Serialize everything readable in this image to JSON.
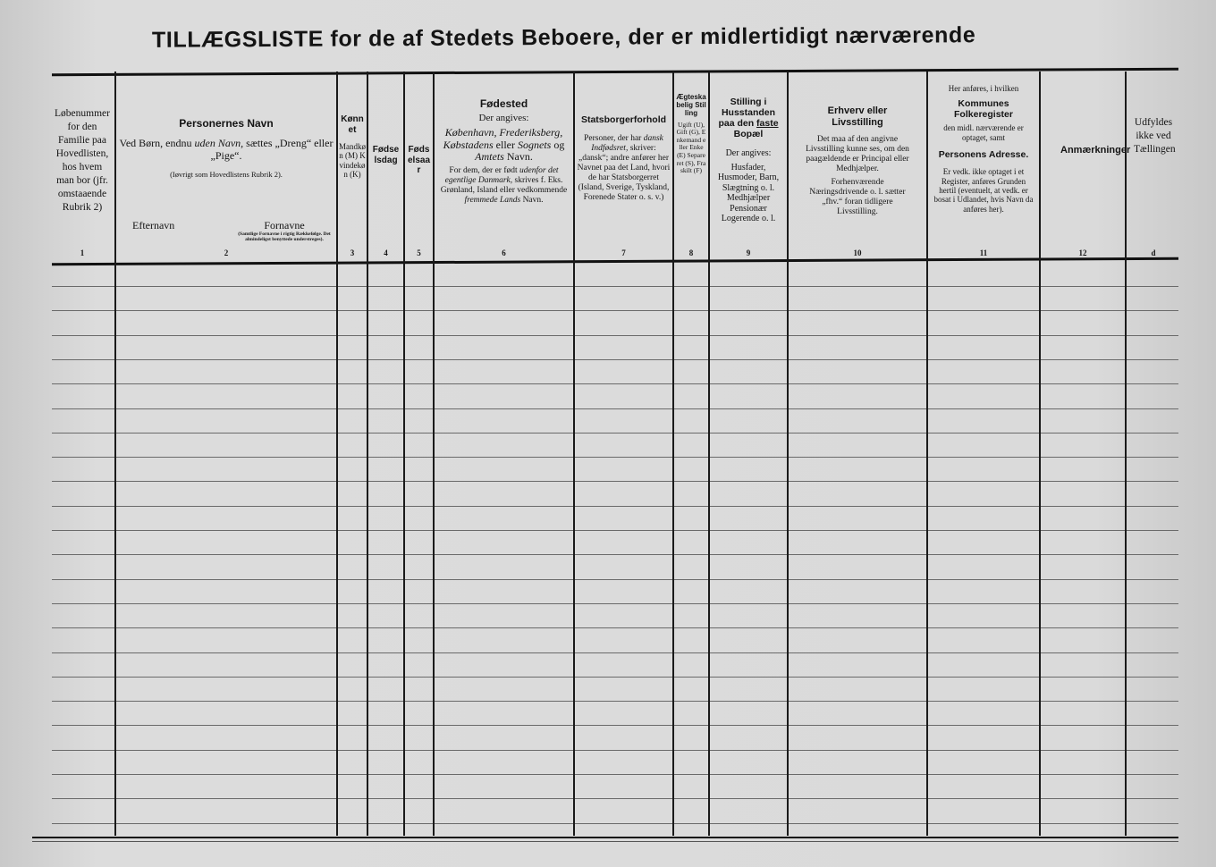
{
  "title": "TILLÆGSLISTE for de af Stedets Beboere, der er midlertidigt nærværende",
  "columns": {
    "c1": {
      "text": "Løbenummer for den Familie paa Hovedlisten, hos hvem man bor (jfr. omstaaende Rubrik 2)",
      "number": "1"
    },
    "c2": {
      "heading": "Personernes Navn",
      "note_pre": "Ved Børn, endnu ",
      "note_em": "uden Navn,",
      "note_post": " sættes „Dreng“ eller „Pige“.",
      "sub": "(Iøvrigt som Hovedlistens Rubrik 2).",
      "surname": "Efternavn",
      "given": "Fornavne",
      "given_note": "(Samtlige Fornavne i rigtig Rækkefølge. Det almindeligst benyttede understreges).",
      "number": "2"
    },
    "c3": {
      "heading": "Kønnet",
      "body": "Mandkøn (M) Kvindekøn (K)",
      "number": "3"
    },
    "c4": {
      "heading": "Fødselsdag",
      "number": "4"
    },
    "c5": {
      "heading": "Fødselsaar",
      "number": "5"
    },
    "c6": {
      "heading": "Fødested",
      "sub": "Der angives:",
      "em1": "København, Frederiksberg, Købstadens",
      "t1": " eller ",
      "em2": "Sognets",
      "t2": " og ",
      "em3": "Amtets",
      "t3": " Navn.",
      "p2_pre": "For dem, der er født ",
      "p2_em": "udenfor det egentlige Danmark,",
      "p2_mid": " skrives f. Eks. Grønland, Island eller vedkommende ",
      "p2_em2": "fremmede Lands",
      "p2_post": " Navn.",
      "number": "6"
    },
    "c7": {
      "heading": "Statsborgerforhold",
      "pre": "Personer, der har ",
      "em": "dansk Indfødsret,",
      "post": " skriver: „dansk“; andre anfører her Navnet paa det Land, hvori de har Statsborgerret (Island, Sverige, Tyskland, Forenede Stater o. s. v.)",
      "number": "7"
    },
    "c8": {
      "heading": "Ægteskabelig Stilling",
      "body": "Ugift (U), Gift (G), Enkemand eller Enke (E) Separeret (S), Fraskilt (F)",
      "number": "8"
    },
    "c9": {
      "heading_pre": "Stilling i Husstanden paa den ",
      "heading_u": "faste",
      "heading_post": " Bopæl",
      "sub": "Der angives:",
      "body": "Husfader, Husmoder, Barn, Slægtning o. l. Medhjælper Pensionær Logerende o. l.",
      "number": "9"
    },
    "c10": {
      "heading": "Erhverv eller Livsstilling",
      "p1": "Det maa af den angivne Livsstilling kunne ses, om den paagældende er Principal eller Medhjælper.",
      "p2": "Forhenværende Næringsdrivende o. l. sætter „fhv.“ foran tidligere Livsstilling.",
      "number": "10"
    },
    "c11": {
      "intro": "Her anføres, i hvilken",
      "heading": "Kommunes Folkeregister",
      "mid": "den midl. nærværende er optaget, samt",
      "heading2": "Personens Adresse.",
      "body": "Er vedk. ikke optaget i et Register, anføres Grunden hertil (eventuelt, at vedk. er bosat i Udlandet, hvis Navn da anføres her).",
      "number": "11"
    },
    "c12": {
      "heading": "Anmærkninger",
      "number": "12"
    },
    "c13": {
      "text": "Udfyldes ikke ved Tællingen",
      "number": "d"
    }
  }
}
